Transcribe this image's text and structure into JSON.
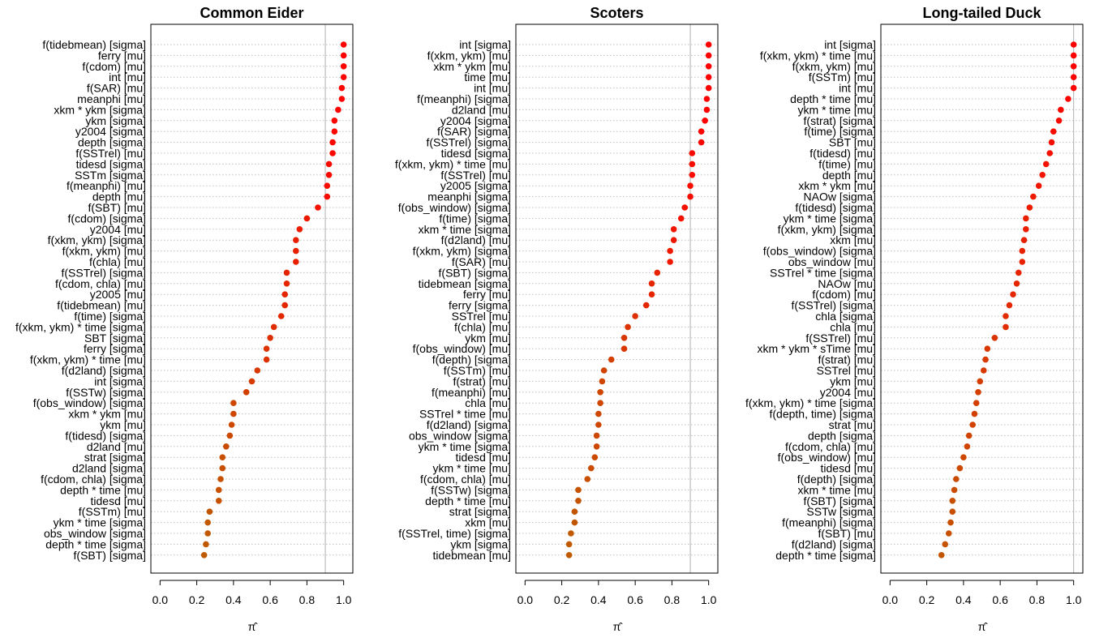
{
  "chart_data": [
    {
      "type": "scatter",
      "title": "Common Eider",
      "xlabel": "π̂",
      "ylabel": "",
      "xlim": [
        -0.05,
        1.05
      ],
      "xticks": [
        "0.0",
        "0.2",
        "0.4",
        "0.6",
        "0.8",
        "1.0"
      ],
      "reference_line": 0.9,
      "grid": "horizontal dotted",
      "terms": [
        "f(tidebmean) [sigma]",
        "ferry [mu]",
        "f(cdom) [mu]",
        "int [mu]",
        "f(SAR) [mu]",
        "meanphi [mu]",
        "xkm * ykm [sigma]",
        "ykm [sigma]",
        "y2004 [sigma]",
        "depth [sigma]",
        "f(SSTrel) [mu]",
        "tidesd [sigma]",
        "SSTm [sigma]",
        "f(meanphi) [mu]",
        "depth [mu]",
        "f(SBT) [mu]",
        "f(cdom) [sigma]",
        "y2004 [mu]",
        "f(xkm, ykm) [sigma]",
        "f(xkm, ykm) [mu]",
        "f(chla) [mu]",
        "f(SSTrel) [sigma]",
        "f(cdom, chla) [mu]",
        "y2005 [mu]",
        "f(tidebmean) [mu]",
        "f(time) [sigma]",
        "f(xkm, ykm) * time [sigma]",
        "SBT [sigma]",
        "ferry [sigma]",
        "f(xkm, ykm) * time [mu]",
        "f(d2land) [sigma]",
        "int [sigma]",
        "f(SSTw) [sigma]",
        "f(obs_window) [sigma]",
        "xkm * ykm [mu]",
        "ykm [mu]",
        "f(tidesd) [sigma]",
        "d2land [mu]",
        "strat [sigma]",
        "d2land [sigma]",
        "f(cdom, chla) [sigma]",
        "depth * time [mu]",
        "tidesd [mu]",
        "f(SSTm) [mu]",
        "ykm * time [sigma]",
        "obs_window [sigma]",
        "depth * time [sigma]",
        "f(SBT) [sigma]"
      ],
      "values": [
        1.0,
        1.0,
        1.0,
        1.0,
        0.99,
        0.99,
        0.97,
        0.95,
        0.95,
        0.94,
        0.94,
        0.92,
        0.92,
        0.91,
        0.91,
        0.86,
        0.8,
        0.76,
        0.74,
        0.74,
        0.74,
        0.69,
        0.69,
        0.68,
        0.68,
        0.66,
        0.62,
        0.6,
        0.58,
        0.58,
        0.53,
        0.5,
        0.47,
        0.4,
        0.4,
        0.39,
        0.38,
        0.36,
        0.34,
        0.34,
        0.33,
        0.32,
        0.32,
        0.27,
        0.26,
        0.26,
        0.25,
        0.24
      ]
    },
    {
      "type": "scatter",
      "title": "Scoters",
      "xlabel": "π̂",
      "ylabel": "",
      "xlim": [
        -0.05,
        1.05
      ],
      "xticks": [
        "0.0",
        "0.2",
        "0.4",
        "0.6",
        "0.8",
        "1.0"
      ],
      "reference_line": 0.9,
      "grid": "horizontal dotted",
      "terms": [
        "int [sigma]",
        "f(xkm, ykm) [mu]",
        "xkm * ykm [mu]",
        "time [mu]",
        "int [mu]",
        "f(meanphi) [sigma]",
        "d2land [mu]",
        "y2004 [sigma]",
        "f(SAR) [sigma]",
        "f(SSTrel) [sigma]",
        "tidesd [sigma]",
        "f(xkm, ykm) * time [mu]",
        "f(SSTrel) [mu]",
        "y2005 [sigma]",
        "meanphi [sigma]",
        "f(obs_window) [sigma]",
        "f(time) [sigma]",
        "xkm * time [sigma]",
        "f(d2land) [mu]",
        "f(xkm, ykm) [sigma]",
        "f(SAR) [mu]",
        "f(SBT) [sigma]",
        "tidebmean [sigma]",
        "ferry [mu]",
        "ferry [sigma]",
        "SSTrel [mu]",
        "f(chla) [mu]",
        "ykm [mu]",
        "f(obs_window) [mu]",
        "f(depth) [sigma]",
        "f(SSTm) [mu]",
        "f(strat) [mu]",
        "f(meanphi) [mu]",
        "chla [mu]",
        "SSTrel * time [mu]",
        "f(d2land) [sigma]",
        "obs_window [sigma]",
        "ykm * time [sigma]",
        "tidesd [mu]",
        "ykm * time [mu]",
        "f(cdom, chla) [mu]",
        "f(SSTw) [sigma]",
        "depth * time [mu]",
        "strat [sigma]",
        "xkm [mu]",
        "f(SSTrel, time) [sigma]",
        "ykm [sigma]",
        "tidebmean [mu]"
      ],
      "values": [
        1.0,
        1.0,
        1.0,
        1.0,
        1.0,
        0.99,
        0.99,
        0.98,
        0.96,
        0.96,
        0.91,
        0.91,
        0.91,
        0.9,
        0.9,
        0.87,
        0.85,
        0.81,
        0.81,
        0.79,
        0.79,
        0.72,
        0.69,
        0.69,
        0.66,
        0.6,
        0.56,
        0.54,
        0.54,
        0.47,
        0.43,
        0.42,
        0.41,
        0.41,
        0.4,
        0.4,
        0.39,
        0.39,
        0.38,
        0.36,
        0.34,
        0.29,
        0.29,
        0.27,
        0.27,
        0.25,
        0.24,
        0.24
      ]
    },
    {
      "type": "scatter",
      "title": "Long-tailed Duck",
      "xlabel": "π̂",
      "ylabel": "",
      "xlim": [
        -0.05,
        1.05
      ],
      "xticks": [
        "0.0",
        "0.2",
        "0.4",
        "0.6",
        "0.8",
        "1.0"
      ],
      "reference_line": 1.0,
      "grid": "horizontal dotted",
      "terms": [
        "int [sigma]",
        "f(xkm, ykm) * time [mu]",
        "f(xkm, ykm) [mu]",
        "f(SSTm) [mu]",
        "int [mu]",
        "depth * time [mu]",
        "ykm * time [mu]",
        "f(strat) [sigma]",
        "f(time) [sigma]",
        "SBT [mu]",
        "f(tidesd) [mu]",
        "f(time) [mu]",
        "depth [mu]",
        "xkm * ykm [mu]",
        "NAOw [sigma]",
        "f(tidesd) [sigma]",
        "ykm * time [sigma]",
        "f(xkm, ykm) [sigma]",
        "xkm [mu]",
        "f(obs_window) [sigma]",
        "obs_window [mu]",
        "SSTrel * time [sigma]",
        "NAOw [mu]",
        "f(cdom) [mu]",
        "f(SSTrel) [sigma]",
        "chla [sigma]",
        "chla [mu]",
        "f(SSTrel) [mu]",
        "xkm * ykm * sTime [mu]",
        "f(strat) [mu]",
        "SSTrel [mu]",
        "ykm [mu]",
        "y2004 [mu]",
        "f(xkm, ykm) * time [sigma]",
        "f(depth, time) [sigma]",
        "strat [mu]",
        "depth [sigma]",
        "f(cdom, chla) [mu]",
        "f(obs_window) [mu]",
        "tidesd [mu]",
        "f(depth) [sigma]",
        "xkm * time [mu]",
        "f(SBT) [sigma]",
        "SSTw [sigma]",
        "f(meanphi) [sigma]",
        "f(SBT) [mu]",
        "f(d2land) [sigma]",
        "depth * time [sigma]"
      ],
      "values": [
        1.0,
        1.0,
        1.0,
        1.0,
        1.0,
        0.97,
        0.93,
        0.92,
        0.89,
        0.88,
        0.87,
        0.85,
        0.83,
        0.81,
        0.78,
        0.76,
        0.74,
        0.74,
        0.73,
        0.72,
        0.72,
        0.7,
        0.69,
        0.67,
        0.65,
        0.63,
        0.63,
        0.57,
        0.53,
        0.52,
        0.51,
        0.49,
        0.48,
        0.47,
        0.46,
        0.45,
        0.43,
        0.42,
        0.4,
        0.38,
        0.36,
        0.35,
        0.34,
        0.34,
        0.33,
        0.32,
        0.3,
        0.28
      ]
    }
  ],
  "colors": {
    "high": "#ff0000",
    "low": "#c05a00",
    "frame": "#000000",
    "grid": "#bfbfbf",
    "reference_line": "#b0b0b0"
  }
}
